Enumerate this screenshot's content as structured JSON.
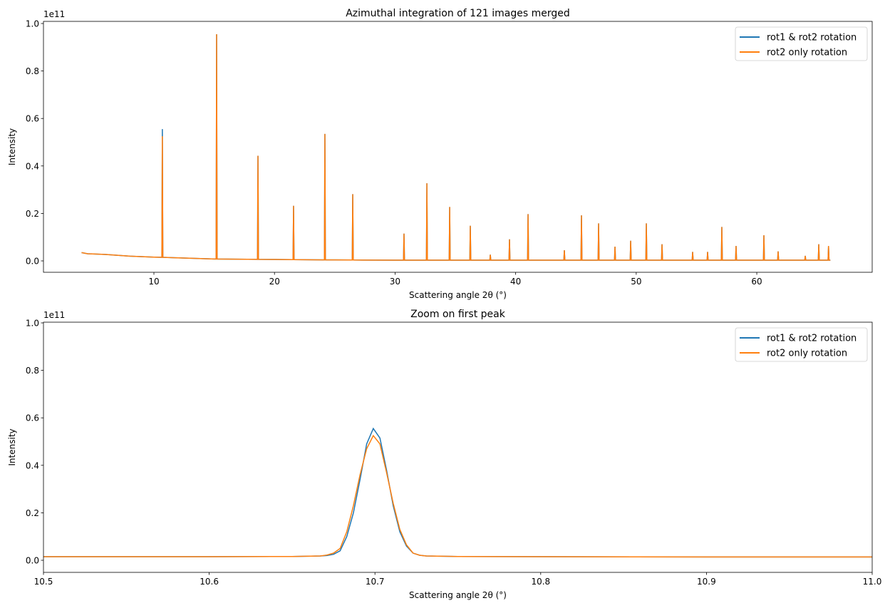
{
  "chart_data": [
    {
      "type": "line",
      "title": "Azimuthal integration of 121 images merged",
      "xlabel": "Scattering angle 2θ (°)",
      "ylabel": "Intensity",
      "y_offset_label": "1e11",
      "y_units": "1e11",
      "xlim": [
        0.84,
        69.57
      ],
      "ylim": [
        -0.048,
        1.009
      ],
      "xticks": [
        10,
        20,
        30,
        40,
        50,
        60
      ],
      "yticks": [
        "0.0",
        "0.2",
        "0.4",
        "0.6",
        "0.8",
        "1.0"
      ],
      "grid": false,
      "legend_position": "top-right",
      "baseline": [
        [
          4.0,
          0.035
        ],
        [
          4.5,
          0.03
        ],
        [
          6,
          0.027
        ],
        [
          8,
          0.02
        ],
        [
          10,
          0.016
        ],
        [
          12,
          0.013
        ],
        [
          15,
          0.008
        ],
        [
          20,
          0.006
        ],
        [
          25,
          0.004
        ],
        [
          30,
          0.003
        ],
        [
          40,
          0.003
        ],
        [
          50,
          0.003
        ],
        [
          60,
          0.003
        ],
        [
          66.1,
          0.003
        ]
      ],
      "series": [
        {
          "name": "rot1 & rot2 rotation",
          "color": "#1f77b4",
          "peaks": [
            [
              10.7,
              0.555
            ],
            [
              15.2,
              0.955
            ],
            [
              18.63,
              0.443
            ],
            [
              21.58,
              0.232
            ],
            [
              24.18,
              0.535
            ],
            [
              26.49,
              0.281
            ],
            [
              30.74,
              0.115
            ],
            [
              32.64,
              0.327
            ],
            [
              34.53,
              0.227
            ],
            [
              36.24,
              0.148
            ],
            [
              37.9,
              0.026
            ],
            [
              39.49,
              0.091
            ],
            [
              41.03,
              0.197
            ],
            [
              44.04,
              0.045
            ],
            [
              45.46,
              0.192
            ],
            [
              46.88,
              0.158
            ],
            [
              48.24,
              0.06
            ],
            [
              49.54,
              0.085
            ],
            [
              50.84,
              0.158
            ],
            [
              52.14,
              0.07
            ],
            [
              54.68,
              0.038
            ],
            [
              55.92,
              0.038
            ],
            [
              57.1,
              0.143
            ],
            [
              58.28,
              0.063
            ],
            [
              60.59,
              0.108
            ],
            [
              61.77,
              0.04
            ],
            [
              64.02,
              0.021
            ],
            [
              65.14,
              0.07
            ],
            [
              65.95,
              0.063
            ]
          ]
        },
        {
          "name": "rot2 only rotation",
          "color": "#ff7f0e",
          "peaks": [
            [
              10.7,
              0.525
            ],
            [
              15.2,
              0.955
            ],
            [
              18.63,
              0.443
            ],
            [
              21.58,
              0.232
            ],
            [
              24.18,
              0.535
            ],
            [
              26.49,
              0.281
            ],
            [
              30.74,
              0.115
            ],
            [
              32.64,
              0.327
            ],
            [
              34.53,
              0.227
            ],
            [
              36.24,
              0.148
            ],
            [
              37.9,
              0.026
            ],
            [
              39.49,
              0.091
            ],
            [
              41.03,
              0.197
            ],
            [
              44.04,
              0.045
            ],
            [
              45.46,
              0.192
            ],
            [
              46.88,
              0.158
            ],
            [
              48.24,
              0.06
            ],
            [
              49.54,
              0.085
            ],
            [
              50.84,
              0.158
            ],
            [
              52.14,
              0.07
            ],
            [
              54.68,
              0.038
            ],
            [
              55.92,
              0.038
            ],
            [
              57.1,
              0.143
            ],
            [
              58.28,
              0.063
            ],
            [
              60.59,
              0.108
            ],
            [
              61.77,
              0.04
            ],
            [
              64.02,
              0.021
            ],
            [
              65.14,
              0.07
            ],
            [
              65.95,
              0.063
            ]
          ]
        }
      ]
    },
    {
      "type": "line",
      "title": "Zoom on first peak",
      "xlabel": "Scattering angle 2θ (°)",
      "ylabel": "Intensity",
      "y_offset_label": "1e11",
      "y_units": "1e11",
      "xlim": [
        10.5,
        11.0
      ],
      "ylim": [
        -0.051,
        1.003
      ],
      "xticks": [
        "10.5",
        "10.6",
        "10.7",
        "10.8",
        "10.9",
        "11.0"
      ],
      "yticks": [
        "0.0",
        "0.2",
        "0.4",
        "0.6",
        "0.8",
        "1.0"
      ],
      "grid": false,
      "legend_position": "top-right",
      "x": [
        10.5,
        10.6,
        10.65,
        10.667,
        10.671,
        10.675,
        10.679,
        10.683,
        10.687,
        10.691,
        10.695,
        10.699,
        10.703,
        10.707,
        10.711,
        10.715,
        10.719,
        10.723,
        10.727,
        10.731,
        10.75,
        10.8,
        10.9,
        11.0
      ],
      "series": [
        {
          "name": "rot1 & rot2 rotation",
          "color": "#1f77b4",
          "values": [
            0.015,
            0.015,
            0.016,
            0.018,
            0.02,
            0.025,
            0.04,
            0.1,
            0.2,
            0.34,
            0.49,
            0.555,
            0.515,
            0.38,
            0.23,
            0.12,
            0.06,
            0.03,
            0.021,
            0.018,
            0.016,
            0.015,
            0.014,
            0.014
          ]
        },
        {
          "name": "rot2 only rotation",
          "color": "#ff7f0e",
          "values": [
            0.015,
            0.015,
            0.016,
            0.018,
            0.022,
            0.03,
            0.05,
            0.12,
            0.23,
            0.36,
            0.47,
            0.525,
            0.49,
            0.37,
            0.24,
            0.13,
            0.065,
            0.03,
            0.021,
            0.018,
            0.016,
            0.015,
            0.014,
            0.014
          ]
        }
      ]
    }
  ]
}
